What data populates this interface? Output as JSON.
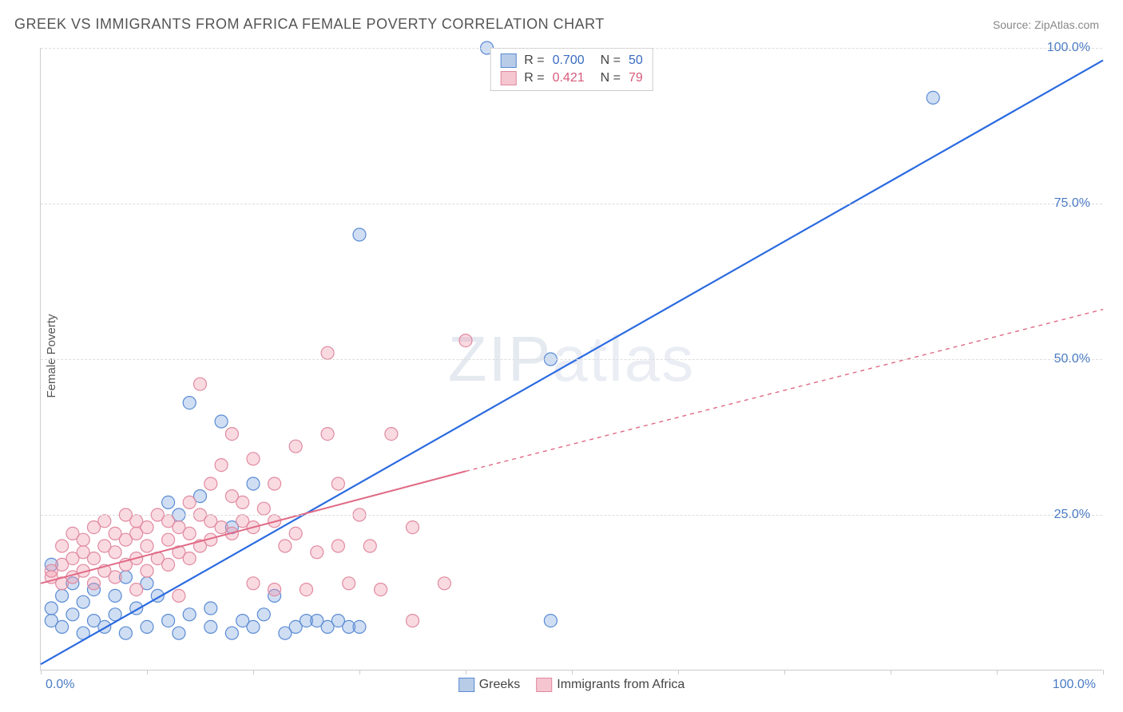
{
  "title": "GREEK VS IMMIGRANTS FROM AFRICA FEMALE POVERTY CORRELATION CHART",
  "source": "Source: ZipAtlas.com",
  "ylabel": "Female Poverty",
  "watermark_prefix": "ZIP",
  "watermark_suffix": "atlas",
  "chart": {
    "type": "scatter",
    "xlim": [
      0,
      100
    ],
    "ylim": [
      0,
      100
    ],
    "xticks": [
      0,
      10,
      20,
      30,
      40,
      50,
      60,
      70,
      80,
      90,
      100
    ],
    "xtick_labels_shown": {
      "0": "0.0%",
      "100": "100.0%"
    },
    "yticks": [
      25,
      50,
      75,
      100
    ],
    "ytick_labels": {
      "25": "25.0%",
      "50": "50.0%",
      "75": "75.0%",
      "100": "100.0%"
    },
    "grid_color": "#dddddd",
    "background_color": "#ffffff",
    "axis_color": "#cccccc",
    "marker_radius": 8,
    "marker_stroke_width": 1.2,
    "series": [
      {
        "name": "Greeks",
        "color_fill": "rgba(120, 160, 220, 0.35)",
        "color_stroke": "#5a8bd4",
        "swatch_fill": "#b8cce8",
        "swatch_border": "#5a8bd4",
        "R": "0.700",
        "N": "50",
        "stat_color": "#3a6bc0",
        "trendline": {
          "color": "#2a6ae0",
          "width": 2.2,
          "solid_from": [
            0,
            1
          ],
          "solid_to": [
            100,
            98
          ],
          "dash": "none"
        },
        "points": [
          [
            1,
            10
          ],
          [
            1,
            8
          ],
          [
            2,
            12
          ],
          [
            2,
            7
          ],
          [
            3,
            9
          ],
          [
            3,
            14
          ],
          [
            4,
            11
          ],
          [
            4,
            6
          ],
          [
            5,
            8
          ],
          [
            5,
            13
          ],
          [
            6,
            7
          ],
          [
            7,
            12
          ],
          [
            7,
            9
          ],
          [
            8,
            15
          ],
          [
            8,
            6
          ],
          [
            9,
            10
          ],
          [
            10,
            14
          ],
          [
            10,
            7
          ],
          [
            11,
            12
          ],
          [
            12,
            27
          ],
          [
            12,
            8
          ],
          [
            13,
            25
          ],
          [
            13,
            6
          ],
          [
            14,
            43
          ],
          [
            14,
            9
          ],
          [
            15,
            28
          ],
          [
            16,
            10
          ],
          [
            16,
            7
          ],
          [
            17,
            40
          ],
          [
            18,
            23
          ],
          [
            18,
            6
          ],
          [
            19,
            8
          ],
          [
            20,
            30
          ],
          [
            20,
            7
          ],
          [
            21,
            9
          ],
          [
            22,
            12
          ],
          [
            23,
            6
          ],
          [
            24,
            7
          ],
          [
            25,
            8
          ],
          [
            26,
            8
          ],
          [
            27,
            7
          ],
          [
            28,
            8
          ],
          [
            29,
            7
          ],
          [
            30,
            7
          ],
          [
            30,
            70
          ],
          [
            48,
            50
          ],
          [
            48,
            8
          ],
          [
            84,
            92
          ],
          [
            42,
            100
          ],
          [
            1,
            17
          ]
        ]
      },
      {
        "name": "Immigrants from Africa",
        "color_fill": "rgba(240, 150, 170, 0.35)",
        "color_stroke": "#e08aa0",
        "swatch_fill": "#f5c5d0",
        "swatch_border": "#e08aa0",
        "R": "0.421",
        "N": "79",
        "stat_color": "#d85a7a",
        "trendline": {
          "color": "#e06a85",
          "width": 2,
          "solid_from": [
            0,
            14
          ],
          "solid_to": [
            40,
            32
          ],
          "dashed_to": [
            100,
            58
          ],
          "dash": "5,5"
        },
        "points": [
          [
            1,
            15
          ],
          [
            1,
            16
          ],
          [
            2,
            14
          ],
          [
            2,
            17
          ],
          [
            2,
            20
          ],
          [
            3,
            15
          ],
          [
            3,
            18
          ],
          [
            3,
            22
          ],
          [
            4,
            16
          ],
          [
            4,
            19
          ],
          [
            4,
            21
          ],
          [
            5,
            14
          ],
          [
            5,
            18
          ],
          [
            5,
            23
          ],
          [
            6,
            16
          ],
          [
            6,
            20
          ],
          [
            6,
            24
          ],
          [
            7,
            15
          ],
          [
            7,
            19
          ],
          [
            7,
            22
          ],
          [
            8,
            17
          ],
          [
            8,
            21
          ],
          [
            8,
            25
          ],
          [
            9,
            18
          ],
          [
            9,
            22
          ],
          [
            9,
            24
          ],
          [
            10,
            16
          ],
          [
            10,
            20
          ],
          [
            10,
            23
          ],
          [
            11,
            18
          ],
          [
            11,
            25
          ],
          [
            12,
            17
          ],
          [
            12,
            21
          ],
          [
            12,
            24
          ],
          [
            13,
            19
          ],
          [
            13,
            23
          ],
          [
            14,
            18
          ],
          [
            14,
            22
          ],
          [
            14,
            27
          ],
          [
            15,
            20
          ],
          [
            15,
            25
          ],
          [
            15,
            46
          ],
          [
            16,
            21
          ],
          [
            16,
            24
          ],
          [
            16,
            30
          ],
          [
            17,
            23
          ],
          [
            17,
            33
          ],
          [
            18,
            22
          ],
          [
            18,
            28
          ],
          [
            18,
            38
          ],
          [
            19,
            24
          ],
          [
            19,
            27
          ],
          [
            20,
            14
          ],
          [
            20,
            23
          ],
          [
            20,
            34
          ],
          [
            21,
            26
          ],
          [
            22,
            24
          ],
          [
            22,
            30
          ],
          [
            23,
            20
          ],
          [
            24,
            22
          ],
          [
            24,
            36
          ],
          [
            25,
            13
          ],
          [
            26,
            19
          ],
          [
            27,
            51
          ],
          [
            27,
            38
          ],
          [
            28,
            20
          ],
          [
            28,
            30
          ],
          [
            29,
            14
          ],
          [
            30,
            25
          ],
          [
            31,
            20
          ],
          [
            32,
            13
          ],
          [
            33,
            38
          ],
          [
            35,
            23
          ],
          [
            38,
            14
          ],
          [
            40,
            53
          ],
          [
            22,
            13
          ],
          [
            13,
            12
          ],
          [
            9,
            13
          ],
          [
            35,
            8
          ]
        ]
      }
    ]
  },
  "bottom_legend": [
    {
      "label": "Greeks",
      "swatch_fill": "#b8cce8",
      "swatch_border": "#5a8bd4"
    },
    {
      "label": "Immigrants from Africa",
      "swatch_fill": "#f5c5d0",
      "swatch_border": "#e08aa0"
    }
  ]
}
